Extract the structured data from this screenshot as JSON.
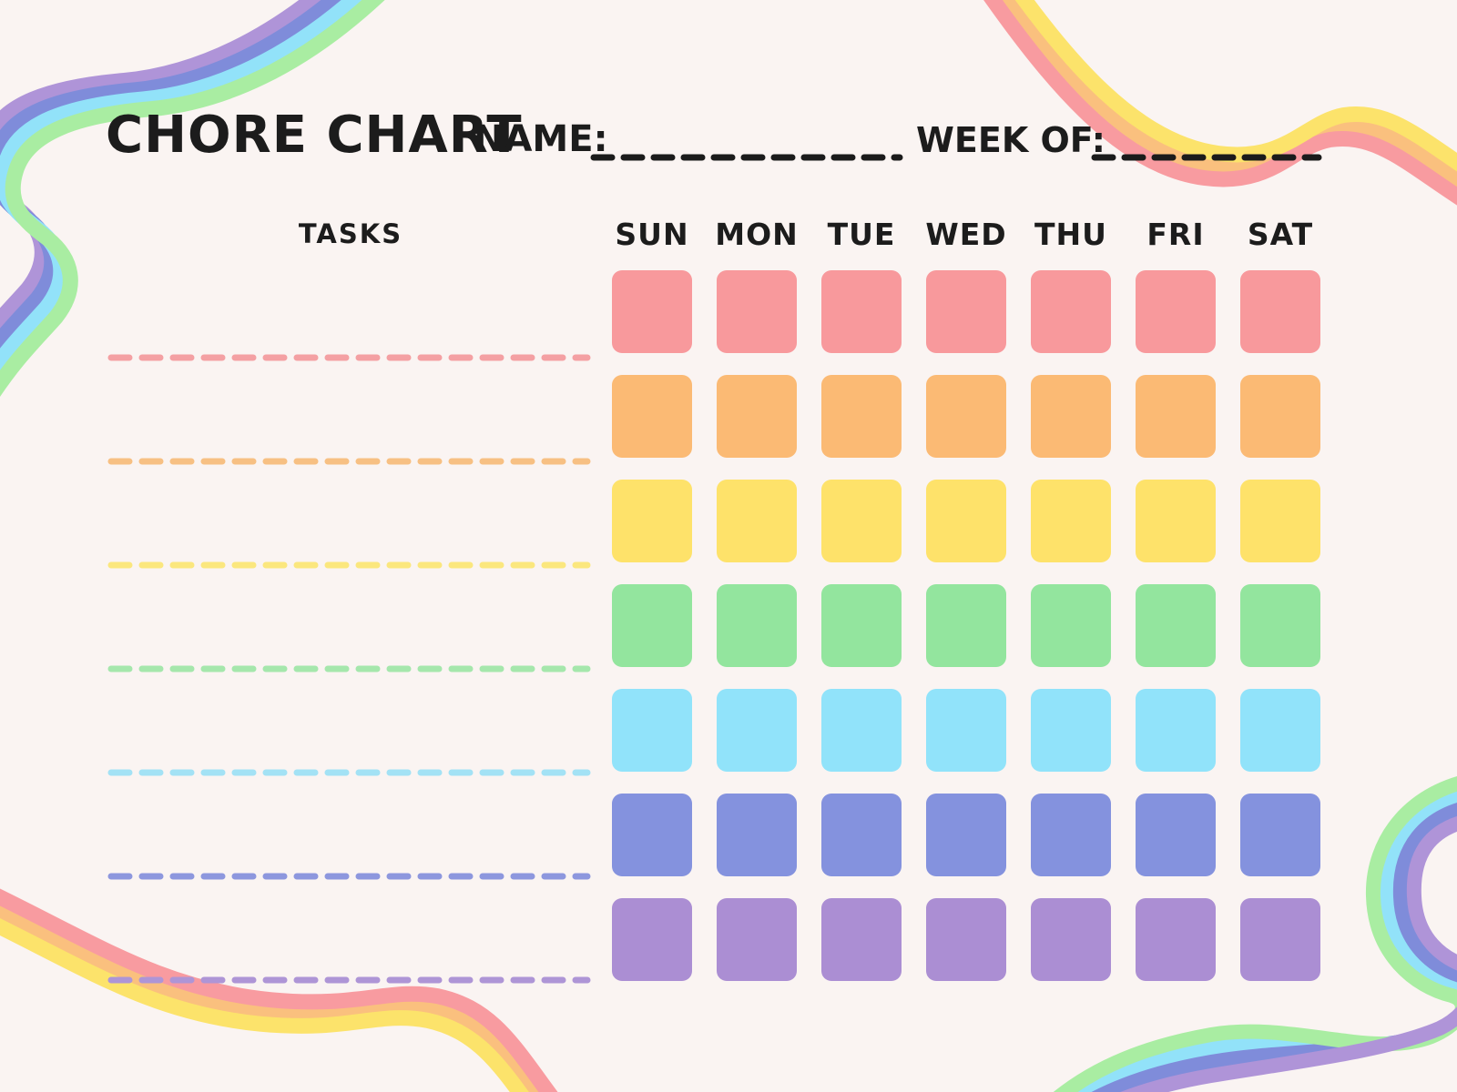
{
  "page": {
    "title": "CHORE CHART",
    "background_color": "#FAF4F2",
    "text_color": "#1C1C1C"
  },
  "header": {
    "name_label": "NAME:",
    "name_value": "",
    "week_label": "WEEK OF:",
    "week_value": "",
    "line_color": "#1B1B1B"
  },
  "table": {
    "tasks_header": "TASKS",
    "days": [
      "SUN",
      "MON",
      "TUE",
      "WED",
      "THU",
      "FRI",
      "SAT"
    ],
    "row_colors": [
      "#F8999C",
      "#FBBA74",
      "#FEE26A",
      "#93E59E",
      "#91E3FA",
      "#8492DE",
      "#AB8ED3"
    ],
    "task_line_colors": [
      "#F4A0A3",
      "#F7C083",
      "#FBE77E",
      "#A5E7AC",
      "#A3E2F5",
      "#8D97DE",
      "#AE95D6"
    ]
  },
  "decorations": {
    "cool_ribbon_colors": [
      "#AF94D8",
      "#7F8CDA",
      "#92E2F9",
      "#A9EDA2"
    ],
    "warm_ribbon_colors": [
      "#F89BA0",
      "#FAC07E",
      "#FCE36B"
    ]
  }
}
